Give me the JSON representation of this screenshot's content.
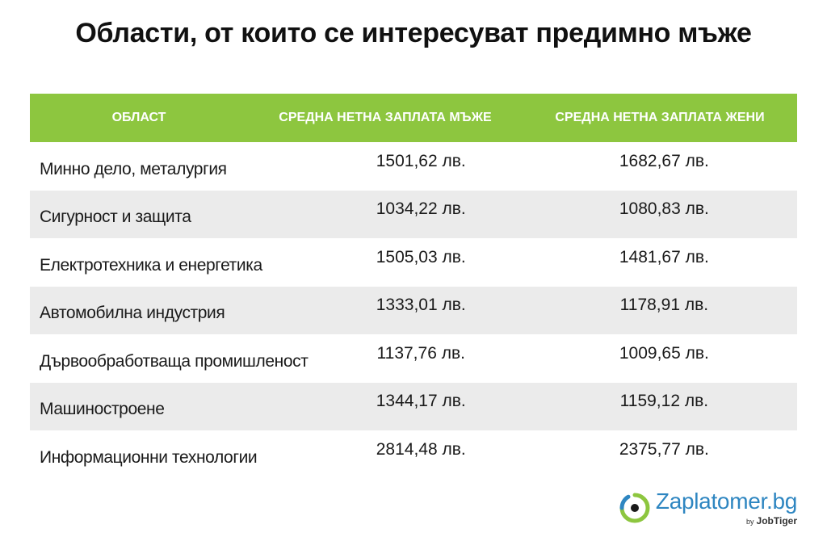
{
  "title": "Области, от които се интересуват предимно мъже",
  "table": {
    "headers": [
      "Област",
      "Средна нетна заплата мъже",
      "Средна нетна заплата жени"
    ],
    "rows": [
      {
        "area": "Минно дело, металургия",
        "men": "1501,62 лв.",
        "women": "1682,67 лв."
      },
      {
        "area": "Сигурност и защита",
        "men": "1034,22 лв.",
        "women": "1080,83 лв."
      },
      {
        "area": "Електротехника и енергетика",
        "men": "1505,03 лв.",
        "women": "1481,67 лв."
      },
      {
        "area": "Автомобилна индустрия",
        "men": "1333,01 лв.",
        "women": "1178,91 лв."
      },
      {
        "area": "Дървообработваща промишленост",
        "men": "1137,76 лв.",
        "women": "1009,65 лв."
      },
      {
        "area": "Машиностроене",
        "men": "1344,17 лв.",
        "women": "1159,12 лв."
      },
      {
        "area": "Информационни технологии",
        "men": "2814,48 лв.",
        "women": "2375,77 лв."
      }
    ]
  },
  "chart_data": {
    "type": "table",
    "title": "Области, от които се интересуват предимно мъже",
    "columns": [
      "Област",
      "Средна нетна заплата мъже",
      "Средна нетна заплата жени"
    ],
    "categories": [
      "Минно дело, металургия",
      "Сигурност и защита",
      "Електротехника и енергетика",
      "Автомобилна индустрия",
      "Дървообработваща промишленост",
      "Машиностроене",
      "Информационни технологии"
    ],
    "series": [
      {
        "name": "Средна нетна заплата мъже",
        "values": [
          1501.62,
          1034.22,
          1505.03,
          1333.01,
          1137.76,
          1344.17,
          2814.48
        ]
      },
      {
        "name": "Средна нетна заплата жени",
        "values": [
          1682.67,
          1080.83,
          1481.67,
          1178.91,
          1009.65,
          1159.12,
          2375.77
        ]
      }
    ],
    "unit": "лв."
  },
  "logo": {
    "name": "Zaplatomer.bg",
    "by": "by",
    "brand": "JobTiger",
    "icon": "zaplatomer-logo-icon"
  },
  "colors": {
    "header_green": "#8dc63f",
    "row_shade": "#ebebeb",
    "logo_blue": "#2e86c1"
  }
}
